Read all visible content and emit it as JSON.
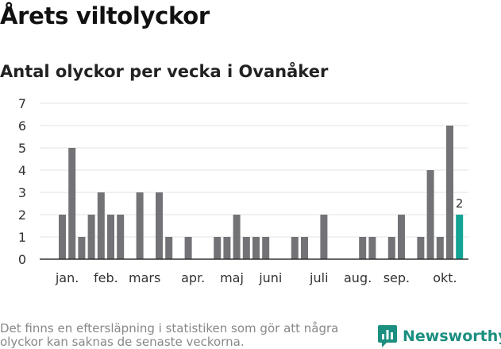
{
  "header": {
    "title": "Årets viltolyckor",
    "subtitle": "Antal olyckor per vecka i Ovanåker"
  },
  "footnote": {
    "line1": "Det finns en eftersläpning i statistiken som gör att några",
    "line2": "olyckor kan saknas de senaste veckorna."
  },
  "brand": {
    "name": "Newsworthy",
    "icon": "newsworthy-logo-icon",
    "color": "#1b8f80"
  },
  "chart_data": {
    "type": "bar",
    "title": "Antal olyckor per vecka i Ovanåker",
    "xlabel": "",
    "ylabel": "",
    "ylim": [
      0,
      7
    ],
    "yticks": [
      0,
      1,
      2,
      3,
      4,
      5,
      6,
      7
    ],
    "grid": true,
    "weeks": [
      1,
      2,
      3,
      4,
      5,
      6,
      7,
      8,
      9,
      10,
      11,
      12,
      13,
      14,
      15,
      16,
      17,
      18,
      19,
      20,
      21,
      22,
      23,
      24,
      25,
      26,
      27,
      28,
      29,
      30,
      31,
      32,
      33,
      34,
      35,
      36,
      37,
      38,
      39,
      40,
      41,
      42
    ],
    "values": [
      2,
      5,
      1,
      2,
      3,
      2,
      2,
      0,
      3,
      0,
      3,
      1,
      0,
      1,
      0,
      0,
      1,
      1,
      2,
      1,
      1,
      1,
      0,
      0,
      1,
      1,
      0,
      2,
      0,
      0,
      0,
      1,
      1,
      0,
      1,
      2,
      0,
      1,
      4,
      1,
      6,
      2
    ],
    "bar_color": "#737276",
    "highlight_color": "#13a494",
    "highlight_index": 41,
    "highlight_label": "2",
    "month_labels": [
      {
        "label": "jan.",
        "week": 1.5
      },
      {
        "label": "feb.",
        "week": 5.5
      },
      {
        "label": "mars",
        "week": 9.5
      },
      {
        "label": "apr.",
        "week": 14.5
      },
      {
        "label": "maj",
        "week": 18.5
      },
      {
        "label": "juni",
        "week": 22.5
      },
      {
        "label": "juli",
        "week": 27.5
      },
      {
        "label": "aug.",
        "week": 31.5
      },
      {
        "label": "sep.",
        "week": 35.5
      },
      {
        "label": "okt.",
        "week": 40.5
      }
    ]
  }
}
